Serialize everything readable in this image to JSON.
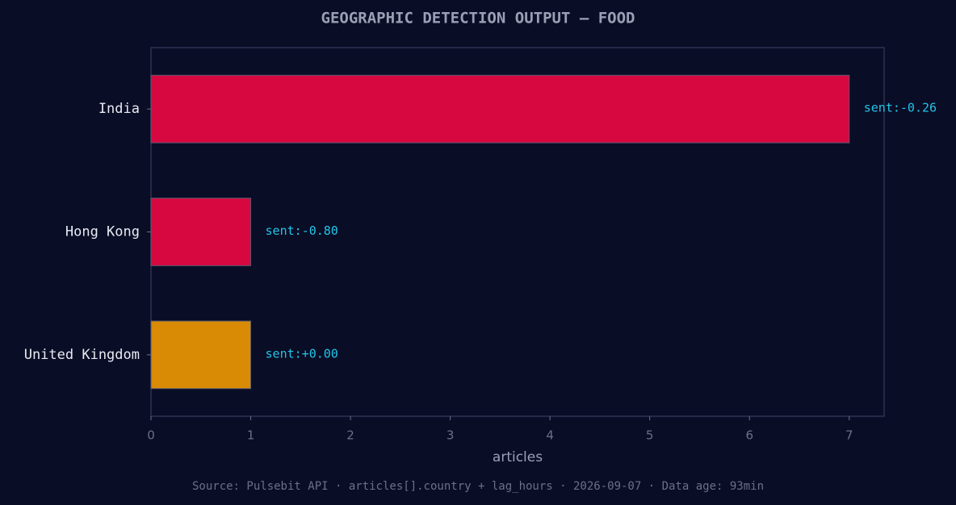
{
  "chart_data": {
    "type": "barh",
    "title": "GEOGRAPHIC DETECTION OUTPUT — FOOD",
    "categories": [
      "India",
      "Hong Kong",
      "United Kingdom"
    ],
    "values": [
      7,
      1,
      1
    ],
    "colors": [
      "#d7083f",
      "#d7083f",
      "#d98b06"
    ],
    "annotations": [
      "sent:-0.26",
      "sent:-0.80",
      "sent:+0.00"
    ],
    "xlabel": "articles",
    "xlim": [
      0,
      7.35
    ],
    "xticks": [
      0,
      1,
      2,
      3,
      4,
      5,
      6,
      7
    ],
    "source": "Source: Pulsebit API · articles[].country + lag_hours · 2026-09-07 · Data age: 93min"
  }
}
